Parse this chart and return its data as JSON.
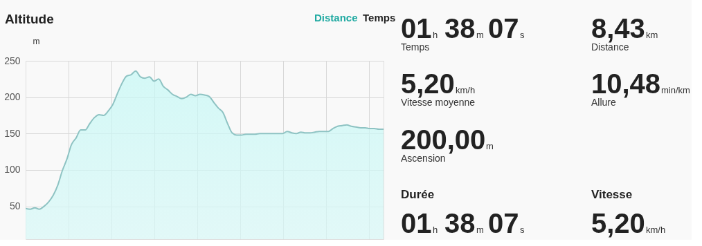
{
  "chart_data": [
    {
      "type": "area",
      "title": "Altitude",
      "ylabel": "m",
      "annotations": [
        "Distance",
        "Temps"
      ],
      "categories": [
        null,
        null,
        null,
        null,
        null,
        null,
        null,
        null,
        null,
        null,
        null,
        null,
        null,
        null,
        null,
        null,
        null,
        null,
        null,
        null,
        null,
        null,
        null,
        null,
        null,
        null,
        null,
        null,
        null,
        null,
        null,
        null,
        null,
        null,
        null,
        null,
        null,
        null,
        null,
        null,
        null,
        null,
        null,
        null,
        null,
        null,
        null,
        null,
        null,
        null,
        null,
        null,
        null,
        null,
        null,
        null,
        null,
        null,
        null,
        null,
        null,
        null,
        null,
        null,
        null,
        null,
        null,
        null,
        null,
        null,
        null,
        null,
        null,
        null,
        null,
        null,
        null,
        null,
        null
      ],
      "series": [
        {
          "color": "#8ec3c3",
          "values": [
            47,
            46,
            48,
            46,
            50,
            56,
            65,
            79,
            99,
            115,
            135,
            144,
            155,
            155,
            164,
            172,
            176,
            175,
            181,
            190,
            205,
            219,
            229,
            231,
            236,
            228,
            226,
            228,
            222,
            225,
            215,
            210,
            204,
            201,
            198,
            200,
            204,
            202,
            204,
            203,
            201,
            193,
            185,
            179,
            164,
            151,
            148,
            148,
            149,
            149,
            149,
            150,
            150,
            150,
            150,
            150,
            150,
            153,
            151,
            150,
            152,
            151,
            151,
            152,
            153,
            153,
            153,
            157,
            160,
            161,
            162,
            160,
            159,
            158,
            158,
            157,
            157,
            156,
            156
          ]
        }
      ],
      "ylim": [
        5,
        250
      ],
      "yticks": [
        50,
        100,
        150,
        200,
        250
      ],
      "grid": true,
      "tick_labels": "y"
    },
    {
      "type": "other",
      "annotations": [
        "01",
        "h",
        "38",
        "m",
        "07",
        "s",
        "Temps",
        "8,43",
        "km",
        "Distance",
        "5,20",
        "km/h",
        "Vitesse moyenne",
        "10,48",
        "min/km",
        "Allure",
        "200,00",
        "m",
        "Ascension",
        "Durée",
        "Vitesse",
        "01",
        "h",
        "38",
        "m",
        "07",
        "s",
        "5,20",
        "km/h"
      ]
    }
  ]
}
